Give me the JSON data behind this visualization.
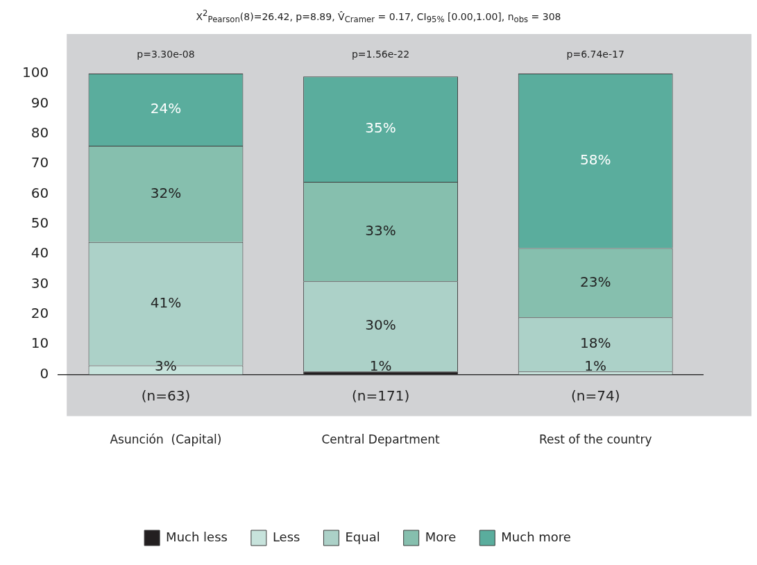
{
  "chart_data": {
    "type": "bar",
    "stacked": true,
    "title": "X$^{2}$$_{Pearson}$(8)=26.42, p=8.89, V̂$_{Cramer}$ = 0.17, CI$_{95%}$ [0.00,1.00], n$_{obs}$ = 308",
    "categories": [
      "Asunción  (Capital)",
      "Central Department",
      "Rest of the country"
    ],
    "series": [
      {
        "name": "Much less",
        "color": "#231f20",
        "values": [
          0,
          1,
          0
        ],
        "value_labels": [
          null,
          "1%",
          null
        ]
      },
      {
        "name": "Less",
        "color": "#c7e3dc",
        "values": [
          3,
          0,
          1
        ],
        "value_labels": [
          "3%",
          null,
          "1%"
        ]
      },
      {
        "name": "Equal",
        "color": "#acd1c8",
        "values": [
          41,
          30,
          18
        ],
        "value_labels": [
          "41%",
          "30%",
          "18%"
        ]
      },
      {
        "name": "More",
        "color": "#86bfae",
        "values": [
          32,
          33,
          23
        ],
        "value_labels": [
          "32%",
          "33%",
          "23%"
        ]
      },
      {
        "name": "Much more",
        "color": "#5aad9d",
        "values": [
          24,
          35,
          58
        ],
        "value_labels": [
          "24%",
          "35%",
          "58%"
        ]
      }
    ],
    "ylim": [
      0,
      100
    ],
    "yticks": [
      0,
      10,
      20,
      30,
      40,
      50,
      60,
      70,
      80,
      90,
      100
    ],
    "grid": false,
    "legend": "bottom",
    "annotations": [
      "p=3.30e-08",
      "p=1.56e-22",
      "p=6.74e-17",
      "(n=63)",
      "(n=171)",
      "(n=74)"
    ]
  }
}
